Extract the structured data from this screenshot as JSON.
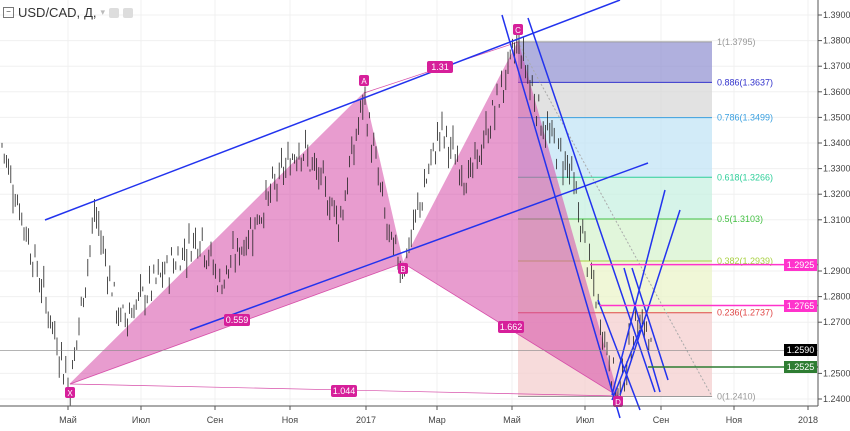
{
  "header": {
    "symbol": "USD/CAD,",
    "interval": "Д,"
  },
  "chart_data": {
    "type": "candlestick",
    "title": "USD/CAD, Д",
    "y_ticks": [
      "1.3900",
      "1.3800",
      "1.3700",
      "1.3600",
      "1.3500",
      "1.3400",
      "1.3300",
      "1.3200",
      "1.3100",
      "1.2900",
      "1.2800",
      "1.2700",
      "1.2500",
      "1.2400"
    ],
    "y_tick_values": [
      1.39,
      1.38,
      1.37,
      1.36,
      1.35,
      1.34,
      1.33,
      1.32,
      1.31,
      1.29,
      1.28,
      1.27,
      1.25,
      1.24
    ],
    "ylim": [
      1.233,
      1.395
    ],
    "x_ticks": [
      "Май",
      "Июл",
      "Сен",
      "Ноя",
      "2017",
      "Мар",
      "Май",
      "Июл",
      "Сен",
      "Ноя",
      "2018"
    ],
    "pattern": {
      "points": [
        {
          "label": "X",
          "price": 1.2445
        },
        {
          "label": "A",
          "price": 1.3582
        },
        {
          "label": "B",
          "price": 1.2918
        },
        {
          "label": "C",
          "price": 1.3795
        },
        {
          "label": "D",
          "price": 1.2412
        }
      ],
      "ratios": [
        "1.31",
        "0.559",
        "1.662",
        "1.044"
      ]
    },
    "fib_levels": [
      {
        "label": "1(1.3795)",
        "value": 1.3795,
        "color": "#999999",
        "fill": "#8e8ed0"
      },
      {
        "label": "0.886(1.3637)",
        "value": 1.3637,
        "color": "#3333cc",
        "fill": "#d6d6d6"
      },
      {
        "label": "0.786(1.3499)",
        "value": 1.3499,
        "color": "#3aa0e0",
        "fill": "#bfe2f5"
      },
      {
        "label": "0.618(1.3266)",
        "value": 1.3266,
        "color": "#2fcf9a",
        "fill": "#c4f0e0"
      },
      {
        "label": "0.5(1.3103)",
        "value": 1.3103,
        "color": "#44c044",
        "fill": "#d4f2cc"
      },
      {
        "label": "0.382(1.2939)",
        "value": 1.2939,
        "color": "#a8d040",
        "fill": "#eaf3c6"
      },
      {
        "label": "0.236(1.2737)",
        "value": 1.2737,
        "color": "#e04848",
        "fill": "#f4cccc"
      },
      {
        "label": "0(1.2410)",
        "value": 1.241,
        "color": "#999999",
        "fill": null
      }
    ],
    "price_tags": [
      {
        "label": "1.2925",
        "value": 1.2925,
        "color": "#ff33cc"
      },
      {
        "label": "1.2765",
        "value": 1.2765,
        "color": "#ff33cc"
      },
      {
        "label": "1.2590",
        "value": 1.259,
        "color": "#000000"
      },
      {
        "label": "1.2525",
        "value": 1.2525,
        "color": "#2e7d32"
      }
    ]
  }
}
